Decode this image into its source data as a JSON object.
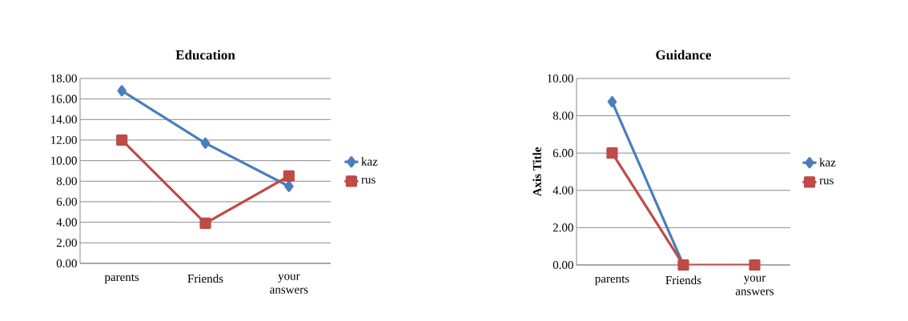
{
  "chart_data": [
    {
      "type": "line",
      "title": "Education",
      "categories": [
        "parents",
        "Friends",
        "your answers"
      ],
      "series": [
        {
          "name": "kaz",
          "color": "#4a7ebb",
          "marker": "diamond",
          "values": [
            16.8,
            11.7,
            7.5
          ]
        },
        {
          "name": "rus",
          "color": "#be4b48",
          "marker": "square",
          "values": [
            12.0,
            3.9,
            8.5
          ]
        }
      ],
      "ylim": [
        0,
        18
      ],
      "yticks": [
        {
          "value": 0,
          "label": "0.00"
        },
        {
          "value": 2,
          "label": "2.00"
        },
        {
          "value": 4,
          "label": "4.00"
        },
        {
          "value": 6,
          "label": "6.00"
        },
        {
          "value": 8,
          "label": "8.00"
        },
        {
          "value": 10,
          "label": "10.00"
        },
        {
          "value": 12,
          "label": "12.00"
        },
        {
          "value": 14,
          "label": "14.00"
        },
        {
          "value": 16,
          "label": "16.00"
        },
        {
          "value": 18,
          "label": "18.00"
        }
      ],
      "grid": "y",
      "legend": "right",
      "line_style": "solid"
    },
    {
      "type": "line",
      "title": "Guidance",
      "ylabel": "Axis Title",
      "categories": [
        "parents",
        "Friends",
        "your answers"
      ],
      "series": [
        {
          "name": "kaz",
          "color": "#4a7ebb",
          "marker": "diamond",
          "values": [
            8.75,
            0,
            null
          ]
        },
        {
          "name": "rus",
          "color": "#be4b48",
          "marker": "square",
          "values": [
            6.0,
            0,
            0
          ]
        }
      ],
      "ylim": [
        0,
        10
      ],
      "yticks": [
        {
          "value": 0,
          "label": "0.00"
        },
        {
          "value": 2,
          "label": "2.00"
        },
        {
          "value": 4,
          "label": "4.00"
        },
        {
          "value": 6,
          "label": "6.00"
        },
        {
          "value": 8,
          "label": "8.00"
        },
        {
          "value": 10,
          "label": "10.00"
        }
      ],
      "grid": "y",
      "legend": "right",
      "line_style": "solid"
    }
  ]
}
